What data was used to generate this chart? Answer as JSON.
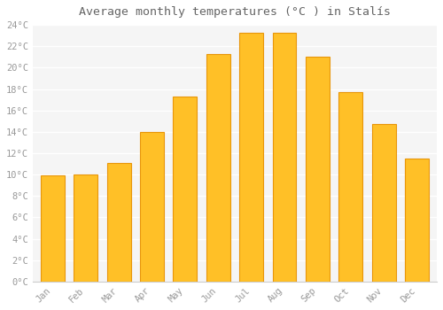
{
  "title": "Average monthly temperatures (°C ) in Stalís",
  "months": [
    "Jan",
    "Feb",
    "Mar",
    "Apr",
    "May",
    "Jun",
    "Jul",
    "Aug",
    "Sep",
    "Oct",
    "Nov",
    "Dec"
  ],
  "values": [
    9.9,
    10.0,
    11.1,
    14.0,
    17.3,
    21.3,
    23.3,
    23.3,
    21.0,
    17.7,
    14.7,
    11.5
  ],
  "bar_color": "#FFC027",
  "bar_edge_color": "#E8960A",
  "background_color": "#FFFFFF",
  "plot_bg_color": "#F5F5F5",
  "grid_color": "#FFFFFF",
  "title_color": "#666666",
  "tick_label_color": "#999999",
  "ylim": [
    0,
    24
  ],
  "ytick_step": 2,
  "title_fontsize": 9.5,
  "tick_fontsize": 7.5,
  "bar_width": 0.72
}
